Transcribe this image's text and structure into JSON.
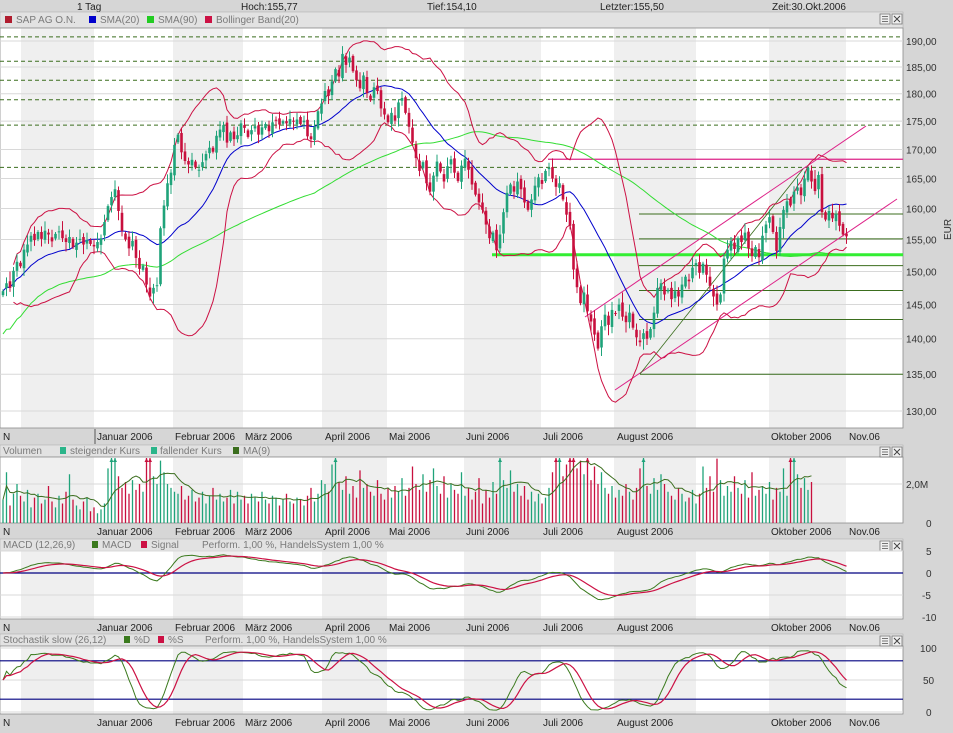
{
  "topbar": {
    "period": "1 Tag",
    "high": "Hoch:155,77",
    "low": "Tief:154,10",
    "last": "Letzter:155,50",
    "time": "Zeit:30.Okt.2006"
  },
  "panels": {
    "main": {
      "legend": [
        {
          "label": "SAP AG O.N.",
          "color": "#b01c2e"
        },
        {
          "label": "SMA(20)",
          "color": "#0000cc"
        },
        {
          "label": "SMA(90)",
          "color": "#22cc22"
        },
        {
          "label": "Bollinger Band(20)",
          "color": "#cc1144"
        }
      ],
      "axis_labels": [
        "190,00",
        "185,00",
        "180,00",
        "175,00",
        "170,00",
        "165,00",
        "160,00",
        "155,00",
        "150,00",
        "145,00",
        "140,00",
        "135,00",
        "130,00"
      ],
      "unit": "EUR"
    },
    "volume": {
      "title": "Volumen",
      "legend": [
        {
          "label": "steigender Kurs",
          "color": "#2bb58a"
        },
        {
          "label": "fallender Kurs",
          "color": "#2bb58a"
        },
        {
          "label": "MA(9)",
          "color": "#3b6e1e"
        }
      ],
      "axis_labels": [
        "2,0M",
        "0"
      ]
    },
    "macd": {
      "title": "MACD (12,26,9)",
      "legend": [
        {
          "label": "MACD",
          "color": "#3b7a1e"
        },
        {
          "label": "Signal",
          "color": "#cc1144"
        }
      ],
      "perform": "Perform. 1,00 %, HandelsSystem 1,00 %",
      "axis_labels": [
        "5",
        "0",
        "-5",
        "-10"
      ]
    },
    "stoch": {
      "title": "Stochastik slow (26,12)",
      "legend": [
        {
          "label": "%D",
          "color": "#3b7a1e"
        },
        {
          "label": "%S",
          "color": "#cc1144"
        }
      ],
      "perform": "Perform. 1,00 %, HandelsSystem 1,00 %",
      "axis_labels": [
        "100",
        "50",
        "0"
      ]
    }
  },
  "months": [
    "N",
    "Januar 2006",
    "Februar 2006",
    "März 2006",
    "April 2006",
    "Mai 2006",
    "Juni 2006",
    "Juli 2006",
    "August 2006",
    "Oktober 2006",
    "Nov.06"
  ],
  "colors": {
    "up": "#1fa37a",
    "down": "#c8103e",
    "sma20": "#0000cc",
    "sma90": "#33dd33",
    "bollinger": "#cc1144",
    "levels": "#3b6e1e",
    "channel": "#dd2288",
    "support": "#33ee33",
    "reference": "#000080"
  },
  "chart_data": [
    {
      "type": "candlestick",
      "title": "SAP AG O.N.",
      "scale": "log",
      "ylim": [
        128,
        192
      ],
      "ylabel": "EUR",
      "close": [
        147.0,
        148.2,
        147.5,
        150.1,
        151.5,
        150.8,
        153.4,
        154.2,
        155.6,
        154.9,
        156.2,
        155.1,
        156.4,
        155.8,
        154.7,
        155.9,
        156.3,
        155.2,
        154.6,
        155.4,
        153.8,
        154.5,
        155.1,
        154.2,
        154.9,
        154.3,
        153.9,
        154.6,
        155.2,
        157.8,
        160.4,
        161.9,
        163.2,
        159.6,
        156.4,
        155.0,
        153.6,
        154.8,
        152.1,
        150.4,
        150.9,
        148.0,
        146.2,
        147.5,
        147.9,
        156.8,
        160.5,
        164.2,
        166.0,
        170.8,
        172.6,
        169.5,
        168.0,
        167.4,
        168.2,
        166.9,
        166.5,
        167.8,
        169.2,
        170.3,
        169.6,
        172.4,
        173.5,
        174.3,
        171.2,
        173.0,
        171.8,
        172.5,
        174.6,
        173.8,
        172.2,
        173.4,
        174.1,
        172.6,
        173.9,
        174.5,
        173.2,
        174.8,
        175.2,
        174.4,
        175.0,
        174.6,
        175.4,
        174.9,
        175.3,
        174.5,
        175.1,
        172.3,
        171.8,
        174.0,
        176.8,
        178.2,
        180.5,
        179.6,
        182.3,
        184.6,
        183.2,
        187.5,
        185.4,
        186.8,
        184.2,
        182.5,
        181.0,
        183.4,
        180.1,
        178.8,
        181.2,
        180.5,
        177.3,
        176.2,
        174.8,
        176.5,
        175.1,
        178.4,
        179.2,
        176.5,
        174.0,
        171.2,
        168.5,
        166.3,
        167.8,
        164.2,
        162.8,
        165.5,
        167.9,
        166.2,
        164.5,
        167.1,
        168.3,
        166.0,
        164.6,
        167.2,
        168.4,
        166.5,
        164.0,
        162.3,
        161.0,
        159.8,
        157.4,
        155.2,
        156.1,
        153.3,
        155.8,
        159.4,
        162.6,
        164.0,
        162.8,
        164.5,
        163.2,
        161.0,
        159.8,
        161.5,
        163.8,
        165.2,
        164.1,
        166.3,
        166.8,
        165.0,
        163.6,
        164.2,
        161.5,
        159.0,
        157.2,
        150.3,
        147.6,
        145.2,
        146.8,
        144.0,
        142.5,
        140.6,
        138.6,
        141.8,
        143.5,
        142.0,
        144.2,
        143.6,
        145.0,
        143.2,
        142.4,
        143.8,
        141.6,
        140.2,
        139.5,
        140.8,
        140.0,
        141.4,
        143.8,
        147.5,
        148.2,
        146.5,
        147.2,
        145.8,
        147.0,
        146.2,
        148.0,
        149.2,
        148.5,
        150.6,
        151.3,
        149.8,
        151.2,
        149.5,
        147.8,
        146.2,
        145.0,
        146.5,
        152.0,
        153.4,
        154.8,
        153.5,
        155.2,
        154.6,
        156.1,
        153.6,
        152.4,
        153.8,
        152.2,
        155.6,
        157.4,
        158.6,
        156.2,
        153.2,
        157.0,
        159.8,
        161.2,
        160.5,
        162.8,
        163.5,
        162.2,
        165.0,
        166.8,
        164.5,
        162.9,
        165.6,
        159.4,
        158.2,
        159.6,
        158.4,
        159.1,
        157.2,
        155.8,
        155.5
      ],
      "volume_millions": [
        1.2,
        2.6,
        0.9,
        1.5,
        2.0,
        1.4,
        1.1,
        1.7,
        0.8,
        1.3,
        1.5,
        1.0,
        1.2,
        1.9,
        1.1,
        0.8,
        1.4,
        1.0,
        1.6,
        2.5,
        1.2,
        0.9,
        0.7,
        1.1,
        1.3,
        0.6,
        0.8,
        0.5,
        0.7,
        1.0,
        2.8,
        3.6,
        3.6,
        2.4,
        1.8,
        2.1,
        1.5,
        2.2,
        1.7,
        2.0,
        1.6,
        3.6,
        3.6,
        2.4,
        2.0,
        3.2,
        2.6,
        2.0,
        1.8,
        1.6,
        1.5,
        1.9,
        1.2,
        1.4,
        1.7,
        1.1,
        1.3,
        1.6,
        1.0,
        1.4,
        1.8,
        1.2,
        1.5,
        1.1,
        1.3,
        1.7,
        1.0,
        1.6,
        1.2,
        1.4,
        1.0,
        1.5,
        1.3,
        1.1,
        1.6,
        1.2,
        1.0,
        1.4,
        1.3,
        0.9,
        1.2,
        1.5,
        1.1,
        1.0,
        1.3,
        1.2,
        0.9,
        1.4,
        1.8,
        1.1,
        1.5,
        2.2,
        2.0,
        1.6,
        3.0,
        3.6,
        2.1,
        1.7,
        2.4,
        1.5,
        1.9,
        1.3,
        2.7,
        1.8,
        2.0,
        1.6,
        1.4,
        2.2,
        1.5,
        1.2,
        1.8,
        1.3,
        1.9,
        1.6,
        2.3,
        1.4,
        1.8,
        2.9,
        2.0,
        1.7,
        2.5,
        1.6,
        2.2,
        2.8,
        1.9,
        1.5,
        2.4,
        1.3,
        2.0,
        1.7,
        1.5,
        2.6,
        1.4,
        1.8,
        1.2,
        1.6,
        2.3,
        1.0,
        1.7,
        1.3,
        2.1,
        1.5,
        3.6,
        2.2,
        1.8,
        2.7,
        1.6,
        2.0,
        1.4,
        1.9,
        1.2,
        1.6,
        1.1,
        1.5,
        1.0,
        1.3,
        1.8,
        2.6,
        3.6,
        3.6,
        2.4,
        3.0,
        3.6,
        3.6,
        2.8,
        3.2,
        2.5,
        3.6,
        2.2,
        2.9,
        2.0,
        2.6,
        1.8,
        1.5,
        1.9,
        1.3,
        1.7,
        1.4,
        2.0,
        1.6,
        1.2,
        1.8,
        2.8,
        3.6,
        1.9,
        1.5,
        2.3,
        1.7,
        2.5,
        2.0,
        1.6,
        1.4,
        1.2,
        1.8,
        1.5,
        1.1,
        1.3,
        1.7,
        1.0,
        1.5,
        2.9,
        1.8,
        2.4,
        1.6,
        3.3,
        2.2,
        1.4,
        1.9,
        1.6,
        2.4,
        1.8,
        1.5,
        2.2,
        1.3,
        2.6,
        1.4,
        1.7,
        1.9,
        1.5,
        2.1,
        1.2,
        1.8,
        1.6,
        2.8,
        1.4,
        3.6,
        3.6,
        2.5,
        1.8,
        2.3,
        1.7,
        2.1
      ],
      "dashed_levels": [
        190.8,
        186.1,
        182.5,
        178.9,
        174.3,
        166.9
      ],
      "retracement_levels": [
        159.1,
        155.1,
        150.9,
        147.1,
        142.8,
        135.0
      ],
      "support_level": 152.6,
      "resistance_level": 168.3
    }
  ]
}
